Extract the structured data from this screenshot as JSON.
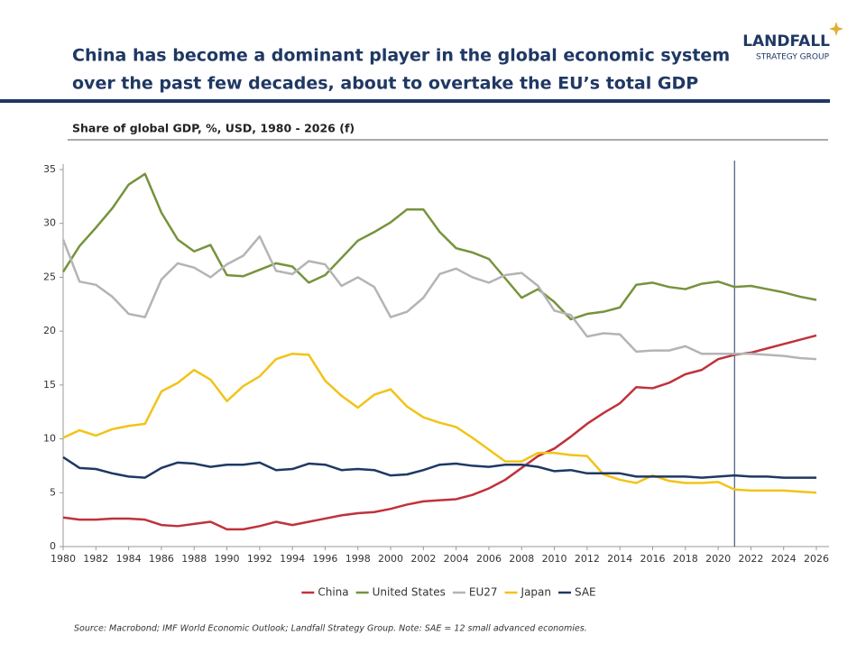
{
  "header": {
    "title_lines": [
      "China has become a dominant player in the global economic system",
      "over the past few decades, about to overtake the EU’s total GDP"
    ],
    "logo": "LANDFALL",
    "logo_sub": "STRATEGY GROUP"
  },
  "chart_data": {
    "type": "line",
    "title": "Share of global GDP, %, USD, 1980 - 2026 (f)",
    "x": [
      1980,
      1981,
      1982,
      1983,
      1984,
      1985,
      1986,
      1987,
      1988,
      1989,
      1990,
      1991,
      1992,
      1993,
      1994,
      1995,
      1996,
      1997,
      1998,
      1999,
      2000,
      2001,
      2002,
      2003,
      2004,
      2005,
      2006,
      2007,
      2008,
      2009,
      2010,
      2011,
      2012,
      2013,
      2014,
      2015,
      2016,
      2017,
      2018,
      2019,
      2020,
      2021,
      2022,
      2023,
      2024,
      2025,
      2026
    ],
    "series": [
      {
        "name": "China",
        "color": "#c0323a",
        "values": [
          2.7,
          2.5,
          2.5,
          2.6,
          2.6,
          2.5,
          2.0,
          1.9,
          2.1,
          2.3,
          1.6,
          1.6,
          1.9,
          2.3,
          2.0,
          2.3,
          2.6,
          2.9,
          3.1,
          3.2,
          3.5,
          3.9,
          4.2,
          4.3,
          4.4,
          4.8,
          5.4,
          6.2,
          7.3,
          8.4,
          9.1,
          10.2,
          11.4,
          12.4,
          13.3,
          14.8,
          14.7,
          15.2,
          16.0,
          16.4,
          17.4,
          17.8,
          18.0,
          18.4,
          18.8,
          19.2,
          19.6
        ]
      },
      {
        "name": "United States",
        "color": "#76933c",
        "values": [
          25.5,
          27.9,
          29.6,
          31.4,
          33.6,
          34.6,
          31.0,
          28.5,
          27.4,
          28.0,
          25.2,
          25.1,
          25.7,
          26.3,
          26.0,
          24.5,
          25.2,
          26.8,
          28.4,
          29.2,
          30.1,
          31.3,
          31.3,
          29.2,
          27.7,
          27.3,
          26.7,
          24.9,
          23.1,
          23.9,
          22.7,
          21.1,
          21.6,
          21.8,
          22.2,
          24.3,
          24.5,
          24.1,
          23.9,
          24.4,
          24.6,
          24.1,
          24.2,
          23.9,
          23.6,
          23.2,
          22.9
        ]
      },
      {
        "name": "EU27",
        "color": "#b4b4b4",
        "values": [
          28.5,
          24.6,
          24.3,
          23.2,
          21.6,
          21.3,
          24.8,
          26.3,
          25.9,
          25.0,
          26.2,
          27.0,
          28.8,
          25.6,
          25.3,
          26.5,
          26.2,
          24.2,
          25.0,
          24.1,
          21.3,
          21.8,
          23.1,
          25.3,
          25.8,
          25.0,
          24.5,
          25.2,
          25.4,
          24.2,
          21.9,
          21.5,
          19.5,
          19.8,
          19.7,
          18.1,
          18.2,
          18.2,
          18.6,
          17.9,
          17.9,
          17.9,
          17.9,
          17.8,
          17.7,
          17.5,
          17.4
        ]
      },
      {
        "name": "Japan",
        "color": "#f2c318",
        "values": [
          10.1,
          10.8,
          10.3,
          10.9,
          11.2,
          11.4,
          14.4,
          15.2,
          16.4,
          15.5,
          13.5,
          14.9,
          15.8,
          17.4,
          17.9,
          17.8,
          15.4,
          14.0,
          12.9,
          14.1,
          14.6,
          13.0,
          12.0,
          11.5,
          11.1,
          10.1,
          9.0,
          7.9,
          7.9,
          8.7,
          8.7,
          8.5,
          8.4,
          6.7,
          6.2,
          5.9,
          6.6,
          6.1,
          5.9,
          5.9,
          6.0,
          5.3,
          5.2,
          5.2,
          5.2,
          5.1,
          5.0
        ]
      },
      {
        "name": "SAE",
        "color": "#1f3864",
        "values": [
          8.3,
          7.3,
          7.2,
          6.8,
          6.5,
          6.4,
          7.3,
          7.8,
          7.7,
          7.4,
          7.6,
          7.6,
          7.8,
          7.1,
          7.2,
          7.7,
          7.6,
          7.1,
          7.2,
          7.1,
          6.6,
          6.7,
          7.1,
          7.6,
          7.7,
          7.5,
          7.4,
          7.6,
          7.6,
          7.4,
          7.0,
          7.1,
          6.8,
          6.8,
          6.8,
          6.5,
          6.5,
          6.5,
          6.5,
          6.4,
          6.5,
          6.6,
          6.5,
          6.5,
          6.4,
          6.4,
          6.4
        ]
      }
    ],
    "xlim": [
      1980,
      2026
    ],
    "xticks": [
      1980,
      1982,
      1984,
      1986,
      1988,
      1990,
      1992,
      1994,
      1996,
      1998,
      2000,
      2002,
      2004,
      2006,
      2008,
      2010,
      2012,
      2014,
      2016,
      2018,
      2020,
      2022,
      2024,
      2026
    ],
    "ylim": [
      0,
      35
    ],
    "yticks": [
      0,
      5,
      10,
      15,
      20,
      25,
      30,
      35
    ],
    "forecast_line": 2021,
    "legend": "bottom",
    "source": "Source: Macrobond; IMF World Economic Outlook; Landfall Strategy Group. Note: SAE = 12 small advanced economies."
  }
}
